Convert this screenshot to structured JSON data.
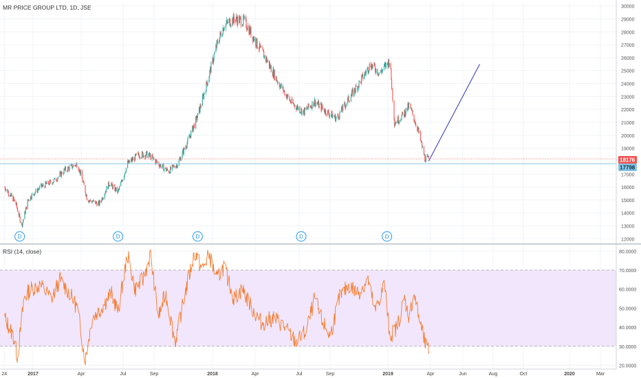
{
  "header": {
    "symbol_title": "MR PRICE GROUP LTD, 1D, JSE"
  },
  "rsi_title": "RSI (14, close)",
  "price_tags": {
    "last": "18176",
    "level": "17798"
  },
  "dividend_marker": "D",
  "colors": {
    "up": "#26a69a",
    "down": "#ef5350",
    "rsi_line": "#f57c2e",
    "rsi_band": "#f1e6fb",
    "trend_line": "#3f3fbf",
    "last_price_tag": "#ef5350",
    "level_tag": "#85c5e8"
  },
  "chart_data": [
    {
      "type": "candlestick",
      "title": "MR PRICE GROUP LTD, 1D, JSE",
      "x_tick_labels": [
        "24",
        "2017",
        "Apr",
        "Jul",
        "Sep",
        "2018",
        "Apr",
        "Jul",
        "Sep",
        "2019",
        "Apr",
        "Jun",
        "Aug",
        "Oct",
        "2020",
        "Mar"
      ],
      "y_tick_labels": [
        "30000",
        "29000",
        "28000",
        "27000",
        "26000",
        "25000",
        "24000",
        "23000",
        "22000",
        "21000",
        "20000",
        "19000",
        "18000",
        "17000",
        "16000",
        "15000",
        "14000",
        "13000",
        "12000"
      ],
      "ylim": [
        11700,
        30300
      ],
      "last_price": 18176,
      "horizontal_level": 17798,
      "series_close_approx": [
        {
          "date": "2016-10-25",
          "close": 16000
        },
        {
          "date": "2016-11-20",
          "close": 14800
        },
        {
          "date": "2016-12-05",
          "close": 13000
        },
        {
          "date": "2016-12-20",
          "close": 15000
        },
        {
          "date": "2017-01-15",
          "close": 16000
        },
        {
          "date": "2017-02-10",
          "close": 16500
        },
        {
          "date": "2017-03-01",
          "close": 17300
        },
        {
          "date": "2017-03-25",
          "close": 17800
        },
        {
          "date": "2017-04-15",
          "close": 15000
        },
        {
          "date": "2017-05-10",
          "close": 14700
        },
        {
          "date": "2017-06-01",
          "close": 16300
        },
        {
          "date": "2017-06-20",
          "close": 15600
        },
        {
          "date": "2017-07-10",
          "close": 17800
        },
        {
          "date": "2017-08-01",
          "close": 18500
        },
        {
          "date": "2017-08-20",
          "close": 18500
        },
        {
          "date": "2017-09-10",
          "close": 17800
        },
        {
          "date": "2017-10-01",
          "close": 17200
        },
        {
          "date": "2017-10-20",
          "close": 17800
        },
        {
          "date": "2017-11-10",
          "close": 19500
        },
        {
          "date": "2017-12-01",
          "close": 21500
        },
        {
          "date": "2017-12-20",
          "close": 24000
        },
        {
          "date": "2018-01-10",
          "close": 27000
        },
        {
          "date": "2018-01-25",
          "close": 28500
        },
        {
          "date": "2018-02-15",
          "close": 29000
        },
        {
          "date": "2018-03-10",
          "close": 28800
        },
        {
          "date": "2018-04-01",
          "close": 27300
        },
        {
          "date": "2018-04-25",
          "close": 25800
        },
        {
          "date": "2018-05-20",
          "close": 24000
        },
        {
          "date": "2018-06-15",
          "close": 22500
        },
        {
          "date": "2018-07-10",
          "close": 21800
        },
        {
          "date": "2018-08-01",
          "close": 22600
        },
        {
          "date": "2018-08-25",
          "close": 21800
        },
        {
          "date": "2018-09-15",
          "close": 21300
        },
        {
          "date": "2018-10-10",
          "close": 22800
        },
        {
          "date": "2018-11-01",
          "close": 24000
        },
        {
          "date": "2018-11-25",
          "close": 25500
        },
        {
          "date": "2018-12-15",
          "close": 24800
        },
        {
          "date": "2019-01-05",
          "close": 25800
        },
        {
          "date": "2019-01-15",
          "close": 21000
        },
        {
          "date": "2019-02-01",
          "close": 21500
        },
        {
          "date": "2019-02-15",
          "close": 22300
        },
        {
          "date": "2019-03-05",
          "close": 20500
        },
        {
          "date": "2019-03-20",
          "close": 18200
        },
        {
          "date": "2019-03-28",
          "close": 18176
        }
      ],
      "annotations": [
        {
          "type": "dividend",
          "label": "D",
          "date": "2016-11-30"
        },
        {
          "type": "dividend",
          "label": "D",
          "date": "2017-06-20"
        },
        {
          "type": "dividend",
          "label": "D",
          "date": "2017-12-01"
        },
        {
          "type": "dividend",
          "label": "D",
          "date": "2018-07-05"
        },
        {
          "type": "dividend",
          "label": "D",
          "date": "2018-12-30"
        },
        {
          "type": "trend_line",
          "from": {
            "date": "2019-03-28",
            "price": 18000
          },
          "to": {
            "date": "2019-07-05",
            "price": 25500
          }
        }
      ]
    },
    {
      "type": "line",
      "title": "RSI (14, close)",
      "y_tick_labels": [
        "80.0000",
        "70.0000",
        "60.0000",
        "50.0000",
        "40.0000",
        "30.0000",
        "20.0000"
      ],
      "ylim": [
        18,
        83
      ],
      "bands": [
        70,
        30
      ],
      "series_approx": [
        {
          "date": "2016-10-25",
          "value": 45
        },
        {
          "date": "2016-11-15",
          "value": 35
        },
        {
          "date": "2016-11-25",
          "value": 24
        },
        {
          "date": "2016-12-10",
          "value": 55
        },
        {
          "date": "2016-12-25",
          "value": 60
        },
        {
          "date": "2017-01-15",
          "value": 62
        },
        {
          "date": "2017-02-05",
          "value": 55
        },
        {
          "date": "2017-02-20",
          "value": 65
        },
        {
          "date": "2017-03-10",
          "value": 58
        },
        {
          "date": "2017-03-25",
          "value": 50
        },
        {
          "date": "2017-04-05",
          "value": 30
        },
        {
          "date": "2017-04-10",
          "value": 23
        },
        {
          "date": "2017-04-25",
          "value": 45
        },
        {
          "date": "2017-05-15",
          "value": 50
        },
        {
          "date": "2017-06-05",
          "value": 58
        },
        {
          "date": "2017-06-20",
          "value": 48
        },
        {
          "date": "2017-07-10",
          "value": 78
        },
        {
          "date": "2017-07-25",
          "value": 60
        },
        {
          "date": "2017-08-10",
          "value": 65
        },
        {
          "date": "2017-08-25",
          "value": 78
        },
        {
          "date": "2017-09-10",
          "value": 45
        },
        {
          "date": "2017-09-25",
          "value": 58
        },
        {
          "date": "2017-10-15",
          "value": 32
        },
        {
          "date": "2017-11-05",
          "value": 58
        },
        {
          "date": "2017-11-25",
          "value": 80
        },
        {
          "date": "2017-12-10",
          "value": 70
        },
        {
          "date": "2017-12-25",
          "value": 78
        },
        {
          "date": "2018-01-10",
          "value": 65
        },
        {
          "date": "2018-01-25",
          "value": 72
        },
        {
          "date": "2018-02-15",
          "value": 55
        },
        {
          "date": "2018-03-05",
          "value": 60
        },
        {
          "date": "2018-03-25",
          "value": 50
        },
        {
          "date": "2018-04-15",
          "value": 42
        },
        {
          "date": "2018-05-10",
          "value": 45
        },
        {
          "date": "2018-06-01",
          "value": 40
        },
        {
          "date": "2018-06-25",
          "value": 32
        },
        {
          "date": "2018-07-15",
          "value": 38
        },
        {
          "date": "2018-08-01",
          "value": 55
        },
        {
          "date": "2018-08-15",
          "value": 44
        },
        {
          "date": "2018-09-01",
          "value": 35
        },
        {
          "date": "2018-09-20",
          "value": 55
        },
        {
          "date": "2018-10-10",
          "value": 62
        },
        {
          "date": "2018-10-30",
          "value": 58
        },
        {
          "date": "2018-11-20",
          "value": 65
        },
        {
          "date": "2018-12-05",
          "value": 48
        },
        {
          "date": "2018-12-25",
          "value": 63
        },
        {
          "date": "2019-01-05",
          "value": 35
        },
        {
          "date": "2019-01-20",
          "value": 40
        },
        {
          "date": "2019-02-05",
          "value": 55
        },
        {
          "date": "2019-02-15",
          "value": 45
        },
        {
          "date": "2019-02-25",
          "value": 58
        },
        {
          "date": "2019-03-10",
          "value": 42
        },
        {
          "date": "2019-03-20",
          "value": 32
        },
        {
          "date": "2019-03-25",
          "value": 28
        },
        {
          "date": "2019-03-30",
          "value": 28
        }
      ]
    }
  ]
}
